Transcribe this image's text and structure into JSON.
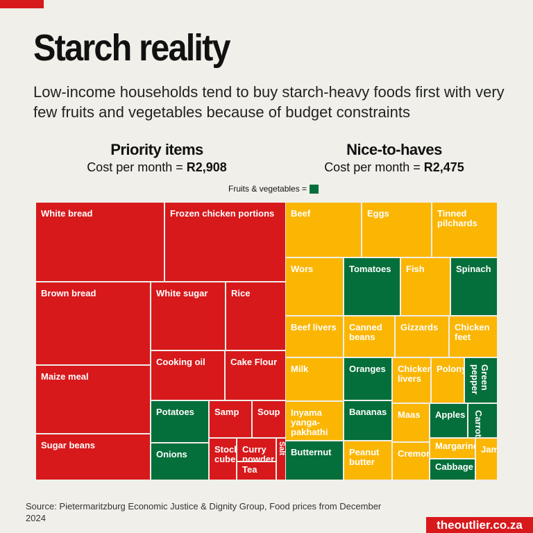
{
  "title": "Starch reality",
  "subtitle": "Low-income households tend to buy starch-heavy foods first with very few fruits and vegetables because of budget constraints",
  "groups": {
    "priority": {
      "heading": "Priority items",
      "cost_label": "Cost per month = ",
      "cost": "R2,908"
    },
    "nice": {
      "heading": "Nice-to-haves",
      "cost_label": "Cost per month = ",
      "cost": "R2,475"
    }
  },
  "legend": {
    "label": "Fruits & vegetables ="
  },
  "colors": {
    "priority": "#d7191c",
    "nice": "#fbb604",
    "fruit_veg": "#046f3b",
    "background": "#f0efe9"
  },
  "chart_data": {
    "type": "treemap",
    "groups": [
      "Priority items",
      "Nice-to-haves"
    ],
    "items": [
      {
        "label": "White bread",
        "group": "Priority items",
        "fruit_veg": false
      },
      {
        "label": "Frozen chicken portions",
        "group": "Priority items",
        "fruit_veg": false
      },
      {
        "label": "Brown bread",
        "group": "Priority items",
        "fruit_veg": false
      },
      {
        "label": "White sugar",
        "group": "Priority items",
        "fruit_veg": false
      },
      {
        "label": "Rice",
        "group": "Priority items",
        "fruit_veg": false
      },
      {
        "label": "Maize meal",
        "group": "Priority items",
        "fruit_veg": false
      },
      {
        "label": "Cooking oil",
        "group": "Priority items",
        "fruit_veg": false
      },
      {
        "label": "Cake Flour",
        "group": "Priority items",
        "fruit_veg": false
      },
      {
        "label": "Sugar beans",
        "group": "Priority items",
        "fruit_veg": false
      },
      {
        "label": "Potatoes",
        "group": "Priority items",
        "fruit_veg": true
      },
      {
        "label": "Onions",
        "group": "Priority items",
        "fruit_veg": true
      },
      {
        "label": "Samp",
        "group": "Priority items",
        "fruit_veg": false
      },
      {
        "label": "Soup",
        "group": "Priority items",
        "fruit_veg": false
      },
      {
        "label": "Stock cube",
        "group": "Priority items",
        "fruit_veg": false
      },
      {
        "label": "Curry powder",
        "group": "Priority items",
        "fruit_veg": false
      },
      {
        "label": "Tea",
        "group": "Priority items",
        "fruit_veg": false
      },
      {
        "label": "Salt",
        "group": "Priority items",
        "fruit_veg": false
      },
      {
        "label": "Beef",
        "group": "Nice-to-haves",
        "fruit_veg": false
      },
      {
        "label": "Eggs",
        "group": "Nice-to-haves",
        "fruit_veg": false
      },
      {
        "label": "Tinned pilchards",
        "group": "Nice-to-haves",
        "fruit_veg": false
      },
      {
        "label": "Wors",
        "group": "Nice-to-haves",
        "fruit_veg": false
      },
      {
        "label": "Tomatoes",
        "group": "Nice-to-haves",
        "fruit_veg": true
      },
      {
        "label": "Fish",
        "group": "Nice-to-haves",
        "fruit_veg": false
      },
      {
        "label": "Spinach",
        "group": "Nice-to-haves",
        "fruit_veg": true
      },
      {
        "label": "Beef livers",
        "group": "Nice-to-haves",
        "fruit_veg": false
      },
      {
        "label": "Canned beans",
        "group": "Nice-to-haves",
        "fruit_veg": false
      },
      {
        "label": "Gizzards",
        "group": "Nice-to-haves",
        "fruit_veg": false
      },
      {
        "label": "Chicken feet",
        "group": "Nice-to-haves",
        "fruit_veg": false
      },
      {
        "label": "Milk",
        "group": "Nice-to-haves",
        "fruit_veg": false
      },
      {
        "label": "Oranges",
        "group": "Nice-to-haves",
        "fruit_veg": true
      },
      {
        "label": "Bananas",
        "group": "Nice-to-haves",
        "fruit_veg": true
      },
      {
        "label": "Chicken livers",
        "group": "Nice-to-haves",
        "fruit_veg": false
      },
      {
        "label": "Polony",
        "group": "Nice-to-haves",
        "fruit_veg": false
      },
      {
        "label": "Green pepper",
        "group": "Nice-to-haves",
        "fruit_veg": true
      },
      {
        "label": "Inyama yanga-pakhathi",
        "group": "Nice-to-haves",
        "fruit_veg": false
      },
      {
        "label": "Butternut",
        "group": "Nice-to-haves",
        "fruit_veg": true
      },
      {
        "label": "Peanut butter",
        "group": "Nice-to-haves",
        "fruit_veg": false
      },
      {
        "label": "Maas",
        "group": "Nice-to-haves",
        "fruit_veg": false
      },
      {
        "label": "Cremora",
        "group": "Nice-to-haves",
        "fruit_veg": false
      },
      {
        "label": "Apples",
        "group": "Nice-to-haves",
        "fruit_veg": true
      },
      {
        "label": "Carrots",
        "group": "Nice-to-haves",
        "fruit_veg": true
      },
      {
        "label": "Margarine",
        "group": "Nice-to-haves",
        "fruit_veg": false
      },
      {
        "label": "Cabbage",
        "group": "Nice-to-haves",
        "fruit_veg": true
      },
      {
        "label": "Jam",
        "group": "Nice-to-haves",
        "fruit_veg": false
      }
    ]
  },
  "source": "Source:  Pietermaritzburg Economic Justice & Dignity Group, Food prices from December 2024",
  "brand": "theoutlier.co.za"
}
